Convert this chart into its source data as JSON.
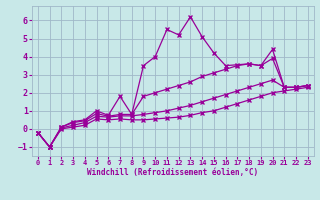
{
  "xlabel": "Windchill (Refroidissement éolien,°C)",
  "xlim": [
    -0.5,
    23.5
  ],
  "ylim": [
    -1.5,
    6.8
  ],
  "yticks": [
    -1,
    0,
    1,
    2,
    3,
    4,
    5,
    6
  ],
  "xticks": [
    0,
    1,
    2,
    3,
    4,
    5,
    6,
    7,
    8,
    9,
    10,
    11,
    12,
    13,
    14,
    15,
    16,
    17,
    18,
    19,
    20,
    21,
    22,
    23
  ],
  "bg_color": "#c8e8e8",
  "grid_color": "#a0b8c8",
  "line_color": "#990099",
  "series": [
    {
      "x": [
        0,
        1,
        2,
        3,
        4,
        5,
        6,
        7,
        8,
        9,
        10,
        11,
        12,
        13,
        14,
        15,
        16,
        17,
        18,
        19,
        20,
        21,
        22,
        23
      ],
      "y": [
        -0.2,
        -1.0,
        0.1,
        0.4,
        0.5,
        1.0,
        0.75,
        1.8,
        0.8,
        3.5,
        4.0,
        5.5,
        5.2,
        6.2,
        5.1,
        4.2,
        3.5,
        3.55,
        3.6,
        3.5,
        3.9,
        2.3,
        2.3,
        2.4
      ]
    },
    {
      "x": [
        0,
        1,
        2,
        3,
        4,
        5,
        6,
        7,
        8,
        9,
        10,
        11,
        12,
        13,
        14,
        15,
        16,
        17,
        18,
        19,
        20,
        21,
        22,
        23
      ],
      "y": [
        -0.2,
        -1.0,
        0.1,
        0.35,
        0.45,
        0.85,
        0.7,
        0.8,
        0.8,
        1.8,
        2.0,
        2.2,
        2.4,
        2.6,
        2.9,
        3.1,
        3.3,
        3.5,
        3.6,
        3.5,
        4.4,
        2.3,
        2.3,
        2.4
      ]
    },
    {
      "x": [
        0,
        1,
        2,
        3,
        4,
        5,
        6,
        7,
        8,
        9,
        10,
        11,
        12,
        13,
        14,
        15,
        16,
        17,
        18,
        19,
        20,
        21,
        22,
        23
      ],
      "y": [
        -0.2,
        -1.0,
        0.05,
        0.2,
        0.35,
        0.7,
        0.65,
        0.72,
        0.72,
        0.8,
        0.9,
        1.0,
        1.15,
        1.3,
        1.5,
        1.7,
        1.9,
        2.1,
        2.3,
        2.5,
        2.7,
        2.3,
        2.3,
        2.4
      ]
    },
    {
      "x": [
        0,
        1,
        2,
        3,
        4,
        5,
        6,
        7,
        8,
        9,
        10,
        11,
        12,
        13,
        14,
        15,
        16,
        17,
        18,
        19,
        20,
        21,
        22,
        23
      ],
      "y": [
        -0.2,
        -1.0,
        0.0,
        0.1,
        0.2,
        0.55,
        0.5,
        0.55,
        0.5,
        0.5,
        0.55,
        0.6,
        0.65,
        0.75,
        0.9,
        1.0,
        1.2,
        1.4,
        1.6,
        1.8,
        2.0,
        2.1,
        2.2,
        2.3
      ]
    }
  ]
}
